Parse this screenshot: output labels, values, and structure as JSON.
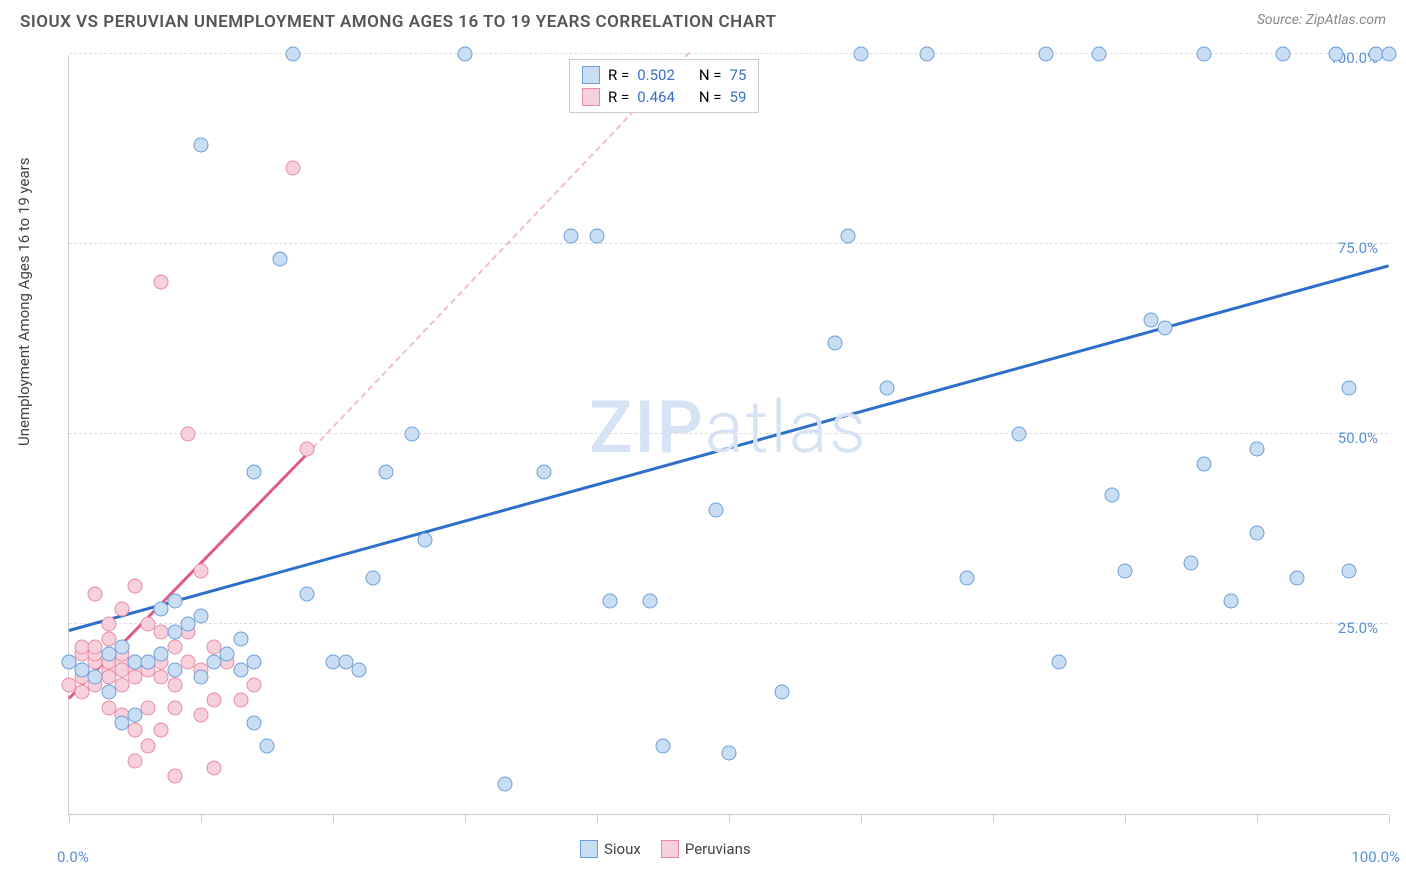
{
  "header": {
    "title": "SIOUX VS PERUVIAN UNEMPLOYMENT AMONG AGES 16 TO 19 YEARS CORRELATION CHART",
    "source": "Source: ZipAtlas.com"
  },
  "chart": {
    "type": "scatter",
    "ylabel": "Unemployment Among Ages 16 to 19 years",
    "xlim": [
      0,
      100
    ],
    "ylim": [
      0,
      100
    ],
    "ytick_labels": [
      "25.0%",
      "50.0%",
      "75.0%",
      "100.0%"
    ],
    "ytick_vals": [
      25,
      50,
      75,
      100
    ],
    "xtick_vals": [
      0,
      10,
      20,
      30,
      40,
      50,
      60,
      70,
      80,
      90,
      100
    ],
    "xaxis_left_label": "0.0%",
    "xaxis_right_label": "100.0%",
    "background_color": "#ffffff",
    "grid_color": "#dddddd",
    "axis_color": "#cccccc",
    "label_color": "#5b8fd6",
    "watermark_text_1": "ZIP",
    "watermark_text_2": "atlas",
    "watermark_color": "#d5e3f4",
    "series": {
      "sioux": {
        "label": "Sioux",
        "marker_fill": "#c9ddf3",
        "marker_stroke": "#6f9fd8",
        "marker_size": 15,
        "trend_color": "#2e6fc9",
        "trend_width": 3,
        "trend_dashed_color": "#a8c5ea",
        "R": "0.502",
        "N": "75",
        "trend_start": [
          0,
          24
        ],
        "trend_solid_end": [
          100,
          72
        ],
        "points": [
          [
            0,
            20
          ],
          [
            1,
            19
          ],
          [
            2,
            18
          ],
          [
            3,
            16
          ],
          [
            3,
            21
          ],
          [
            4,
            22
          ],
          [
            4,
            12
          ],
          [
            5,
            13
          ],
          [
            5,
            20
          ],
          [
            6,
            20
          ],
          [
            7,
            21
          ],
          [
            7,
            27
          ],
          [
            8,
            19
          ],
          [
            8,
            24
          ],
          [
            8,
            28
          ],
          [
            9,
            25
          ],
          [
            10,
            26
          ],
          [
            10,
            18
          ],
          [
            11,
            20
          ],
          [
            12,
            21
          ],
          [
            13,
            23
          ],
          [
            13,
            19
          ],
          [
            14,
            20
          ],
          [
            14,
            12
          ],
          [
            15,
            9
          ],
          [
            10,
            88
          ],
          [
            17,
            100
          ],
          [
            16,
            73
          ],
          [
            14,
            45
          ],
          [
            18,
            29
          ],
          [
            20,
            20
          ],
          [
            21,
            20
          ],
          [
            22,
            19
          ],
          [
            23,
            31
          ],
          [
            24,
            45
          ],
          [
            26,
            50
          ],
          [
            27,
            36
          ],
          [
            30,
            100
          ],
          [
            33,
            4
          ],
          [
            36,
            45
          ],
          [
            38,
            76
          ],
          [
            40,
            76
          ],
          [
            41,
            28
          ],
          [
            44,
            28
          ],
          [
            45,
            9
          ],
          [
            49,
            40
          ],
          [
            50,
            8
          ],
          [
            54,
            16
          ],
          [
            59,
            76
          ],
          [
            60,
            100
          ],
          [
            58,
            62
          ],
          [
            62,
            56
          ],
          [
            65,
            100
          ],
          [
            68,
            31
          ],
          [
            72,
            50
          ],
          [
            74,
            100
          ],
          [
            75,
            20
          ],
          [
            78,
            100
          ],
          [
            79,
            42
          ],
          [
            80,
            32
          ],
          [
            82,
            65
          ],
          [
            83,
            64
          ],
          [
            85,
            33
          ],
          [
            86,
            46
          ],
          [
            86,
            100
          ],
          [
            88,
            28
          ],
          [
            90,
            37
          ],
          [
            90,
            48
          ],
          [
            92,
            100
          ],
          [
            93,
            31
          ],
          [
            96,
            100
          ],
          [
            97,
            56
          ],
          [
            97,
            32
          ],
          [
            99,
            100
          ],
          [
            100,
            100
          ]
        ]
      },
      "peruvians": {
        "label": "Peruvians",
        "marker_fill": "#f6d1dc",
        "marker_stroke": "#e88ca6",
        "marker_size": 15,
        "trend_color": "#e05a84",
        "trend_width": 3,
        "trend_dashed_color": "#f3bccd",
        "R": "0.464",
        "N": "59",
        "trend_start": [
          0,
          15
        ],
        "trend_solid_end": [
          18.5,
          48
        ],
        "trend_dashed_end": [
          47,
          100
        ],
        "points": [
          [
            0,
            17
          ],
          [
            0,
            20
          ],
          [
            1,
            18
          ],
          [
            1,
            21
          ],
          [
            1,
            19
          ],
          [
            1,
            16
          ],
          [
            1,
            22
          ],
          [
            2,
            18
          ],
          [
            2,
            20
          ],
          [
            2,
            21
          ],
          [
            2,
            17
          ],
          [
            2,
            29
          ],
          [
            2,
            22
          ],
          [
            3,
            19
          ],
          [
            3,
            20
          ],
          [
            3,
            18
          ],
          [
            3,
            23
          ],
          [
            3,
            14
          ],
          [
            3,
            25
          ],
          [
            4,
            20
          ],
          [
            4,
            21
          ],
          [
            4,
            19
          ],
          [
            4,
            17
          ],
          [
            4,
            27
          ],
          [
            4,
            13
          ],
          [
            5,
            19
          ],
          [
            5,
            18
          ],
          [
            5,
            20
          ],
          [
            5,
            7
          ],
          [
            5,
            11
          ],
          [
            5,
            30
          ],
          [
            6,
            19
          ],
          [
            6,
            25
          ],
          [
            6,
            14
          ],
          [
            6,
            20
          ],
          [
            6,
            9
          ],
          [
            7,
            18
          ],
          [
            7,
            24
          ],
          [
            7,
            11
          ],
          [
            7,
            20
          ],
          [
            7,
            70
          ],
          [
            8,
            17
          ],
          [
            8,
            22
          ],
          [
            8,
            14
          ],
          [
            8,
            5
          ],
          [
            9,
            20
          ],
          [
            9,
            24
          ],
          [
            9,
            50
          ],
          [
            10,
            13
          ],
          [
            10,
            19
          ],
          [
            10,
            32
          ],
          [
            11,
            15
          ],
          [
            11,
            22
          ],
          [
            11,
            6
          ],
          [
            12,
            20
          ],
          [
            13,
            15
          ],
          [
            14,
            17
          ],
          [
            17,
            85
          ],
          [
            18,
            48
          ]
        ]
      }
    }
  },
  "legend_top": {
    "r_label": "R =",
    "n_label": "N ="
  }
}
